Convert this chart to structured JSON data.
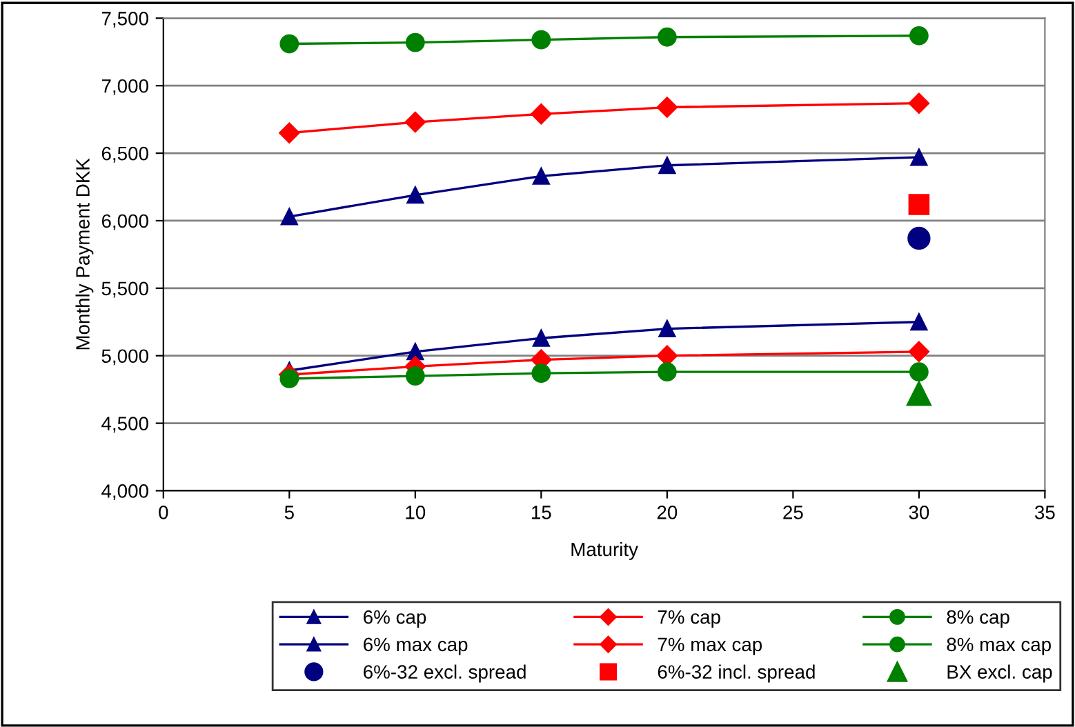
{
  "chart_data": {
    "type": "line",
    "xlabel": "Maturity",
    "ylabel": "Monthly Payment DKK",
    "xlim": [
      0,
      35
    ],
    "xticks": [
      0,
      5,
      10,
      15,
      20,
      25,
      30,
      35
    ],
    "ylim": [
      4000,
      7500
    ],
    "yticks": [
      {
        "value": 4000,
        "label": "4,000"
      },
      {
        "value": 4500,
        "label": "4,500"
      },
      {
        "value": 5000,
        "label": "5,000"
      },
      {
        "value": 5500,
        "label": "5,500"
      },
      {
        "value": 6000,
        "label": "6,000"
      },
      {
        "value": 6500,
        "label": "6,500"
      },
      {
        "value": 7000,
        "label": "7,000"
      },
      {
        "value": 7500,
        "label": "7,500"
      }
    ],
    "grid": "y",
    "legend": "bottom",
    "series": [
      {
        "name": "6% cap",
        "color": "#000080",
        "marker": "triangle",
        "x": [
          5,
          10,
          15,
          20,
          30
        ],
        "values": [
          4890,
          5030,
          5130,
          5200,
          5250
        ]
      },
      {
        "name": "7% cap",
        "color": "#ff0000",
        "marker": "diamond",
        "x": [
          5,
          10,
          15,
          20,
          30
        ],
        "values": [
          4860,
          4920,
          4970,
          5000,
          5030
        ]
      },
      {
        "name": "8% cap",
        "color": "#008000",
        "marker": "circle",
        "x": [
          5,
          10,
          15,
          20,
          30
        ],
        "values": [
          4830,
          4850,
          4870,
          4880,
          4880
        ]
      },
      {
        "name": "6% max cap",
        "color": "#000080",
        "marker": "triangle",
        "x": [
          5,
          10,
          15,
          20,
          30
        ],
        "values": [
          6030,
          6190,
          6330,
          6410,
          6470
        ]
      },
      {
        "name": "7% max cap",
        "color": "#ff0000",
        "marker": "diamond",
        "x": [
          5,
          10,
          15,
          20,
          30
        ],
        "values": [
          6650,
          6730,
          6790,
          6840,
          6870
        ]
      },
      {
        "name": "8% max cap",
        "color": "#008000",
        "marker": "circle",
        "x": [
          5,
          10,
          15,
          20,
          30
        ],
        "values": [
          7310,
          7320,
          7340,
          7360,
          7370
        ]
      },
      {
        "name": "6%-32 excl. spread",
        "type": "scatter",
        "color": "#000080",
        "marker": "circle",
        "x": [
          30
        ],
        "values": [
          5870
        ]
      },
      {
        "name": "6%-32 incl. spread",
        "type": "scatter",
        "color": "#ff0000",
        "marker": "square",
        "x": [
          30
        ],
        "values": [
          6120
        ]
      },
      {
        "name": "BX excl. cap",
        "type": "scatter",
        "color": "#008000",
        "marker": "triangle",
        "x": [
          30
        ],
        "values": [
          4720
        ]
      }
    ]
  }
}
